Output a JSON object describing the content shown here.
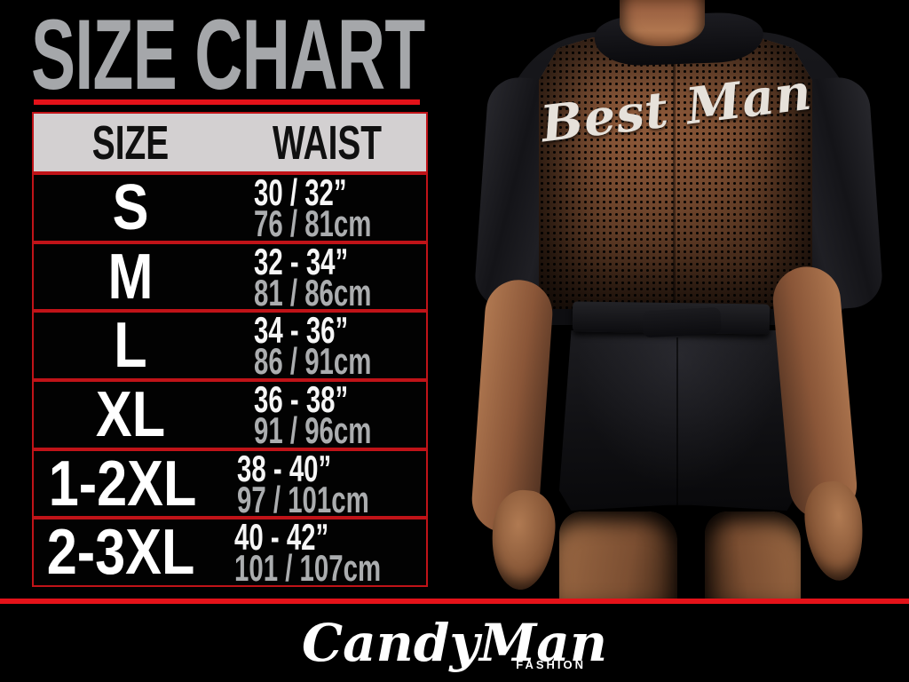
{
  "title": {
    "text": "SIZE CHART"
  },
  "table": {
    "headers": {
      "size": "SIZE",
      "waist": "WAIST"
    },
    "rows": [
      {
        "size": "S",
        "waist_in": "30 / 32”",
        "waist_cm": "76 / 81cm"
      },
      {
        "size": "M",
        "waist_in": "32 - 34”",
        "waist_cm": "81 / 86cm"
      },
      {
        "size": "L",
        "waist_in": "34 - 36”",
        "waist_cm": "86 / 91cm"
      },
      {
        "size": "XL",
        "waist_in": "36 - 38”",
        "waist_cm": "91 / 96cm"
      },
      {
        "size": "1-2XL",
        "waist_in": "38 - 40”",
        "waist_cm": "97 / 101cm"
      },
      {
        "size": "2-3XL",
        "waist_in": "40 - 42”",
        "waist_cm": "101 / 107cm"
      }
    ]
  },
  "photo": {
    "garment_text": "Best Man"
  },
  "footer": {
    "brand": "CandyMan",
    "tagline": "FASHION"
  },
  "colors": {
    "accent_red": "#e41219",
    "border_red": "#c01318",
    "title_gray": "#a5a7aa",
    "header_bg": "#d3d0d1",
    "header_text": "#101010",
    "size_text": "#ffffff",
    "inch_text": "#f6f6f6",
    "cm_text": "#abadaf",
    "mesh_brown": "#6e4129",
    "skin_tone": "#a06a47",
    "logo_white": "#ffffff"
  },
  "chart_data": {
    "type": "table",
    "title": "SIZE CHART",
    "columns": [
      "SIZE",
      "WAIST"
    ],
    "rows": [
      {
        "size": "S",
        "waist_inches": "30 / 32”",
        "waist_cm": "76 / 81cm"
      },
      {
        "size": "M",
        "waist_inches": "32 - 34”",
        "waist_cm": "81 / 86cm"
      },
      {
        "size": "L",
        "waist_inches": "34 - 36”",
        "waist_cm": "86 / 91cm"
      },
      {
        "size": "XL",
        "waist_inches": "36 - 38”",
        "waist_cm": "91 / 96cm"
      },
      {
        "size": "1-2XL",
        "waist_inches": "38 - 40”",
        "waist_cm": "97 / 101cm"
      },
      {
        "size": "2-3XL",
        "waist_inches": "40 - 42”",
        "waist_cm": "101 / 107cm"
      }
    ]
  }
}
